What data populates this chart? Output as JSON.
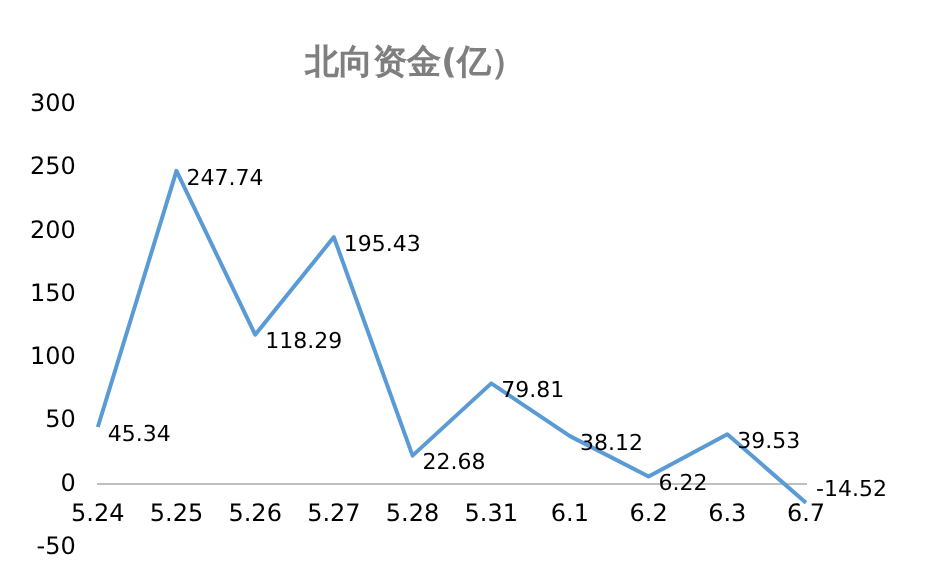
{
  "chart_data": {
    "type": "line",
    "title": "北向资金(亿）",
    "categories": [
      "5.24",
      "5.25",
      "5.26",
      "5.27",
      "5.28",
      "5.31",
      "6.1",
      "6.2",
      "6.3",
      "6.7"
    ],
    "series": [
      {
        "color": "#5b9bd5",
        "values": [
          45.34,
          247.74,
          118.29,
          195.43,
          22.68,
          79.81,
          38.12,
          6.22,
          39.53,
          -14.52
        ]
      }
    ],
    "ylim": [
      -50,
      300
    ],
    "yticks": [
      -50,
      0,
      50,
      100,
      150,
      200,
      250,
      300
    ],
    "grid": false,
    "legend": false,
    "marker": "none",
    "data_labels": true
  }
}
